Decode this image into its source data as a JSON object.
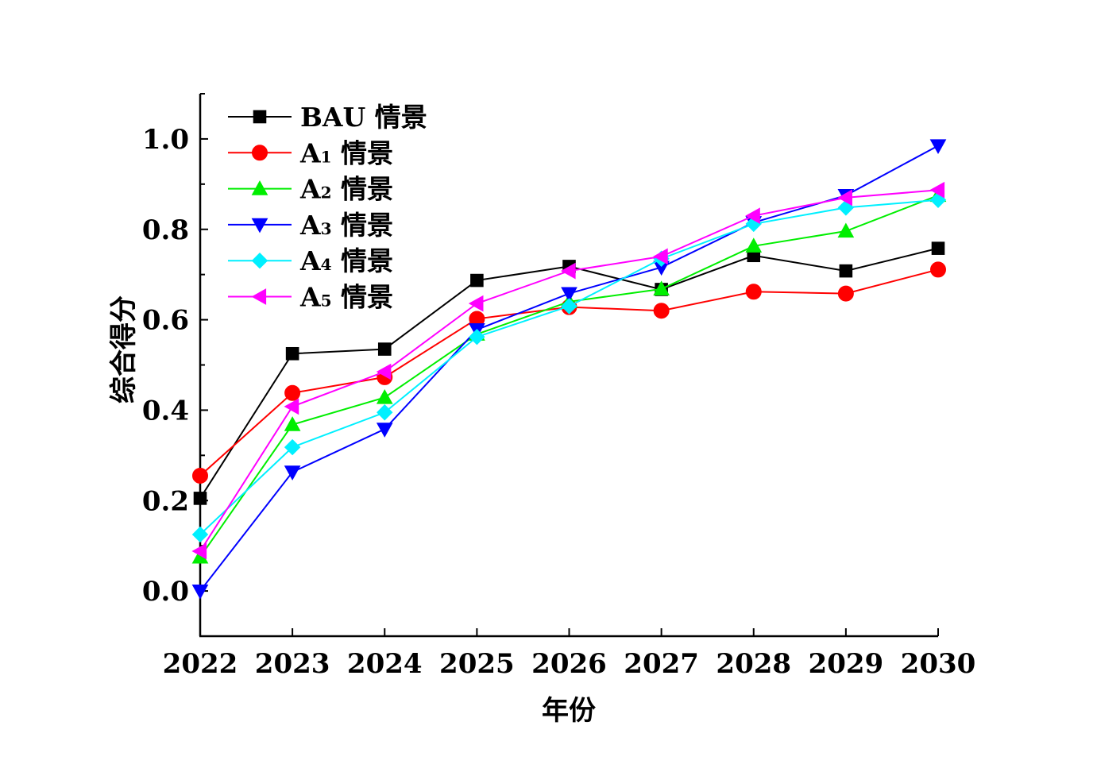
{
  "chart_data": {
    "type": "line",
    "xlabel": "年份",
    "ylabel": "综合得分",
    "categories": [
      "2022",
      "2023",
      "2024",
      "2025",
      "2026",
      "2027",
      "2028",
      "2029",
      "2030"
    ],
    "ylim": [
      -0.1,
      1.1
    ],
    "yticks": [
      "0.0",
      "0.2",
      "0.4",
      "0.6",
      "0.8",
      "1.0"
    ],
    "ytick_values": [
      0.0,
      0.2,
      0.4,
      0.6,
      0.8,
      1.0
    ],
    "grid": false,
    "legend_position": "top-left",
    "series": [
      {
        "name": "BAU 情景",
        "label_main": "BAU",
        "label_sub": "",
        "label_suffix": " 情景",
        "color": "#000000",
        "marker": "square",
        "values": [
          0.205,
          0.525,
          0.535,
          0.687,
          0.718,
          0.667,
          0.742,
          0.708,
          0.758
        ]
      },
      {
        "name": "A₁ 情景",
        "label_main": "A",
        "label_sub": "1",
        "label_suffix": " 情景",
        "color": "#ff0000",
        "marker": "circle",
        "values": [
          0.255,
          0.438,
          0.473,
          0.602,
          0.628,
          0.62,
          0.662,
          0.658,
          0.711
        ]
      },
      {
        "name": "A₂ 情景",
        "label_main": "A",
        "label_sub": "2",
        "label_suffix": " 情景",
        "color": "#00ee00",
        "marker": "triangle-up",
        "values": [
          0.075,
          0.368,
          0.428,
          0.568,
          0.64,
          0.668,
          0.763,
          0.796,
          0.875
        ]
      },
      {
        "name": "A₃ 情景",
        "label_main": "A",
        "label_sub": "3",
        "label_suffix": " 情景",
        "color": "#0000ff",
        "marker": "triangle-down",
        "values": [
          0.0,
          0.263,
          0.358,
          0.578,
          0.658,
          0.716,
          0.815,
          0.875,
          0.985
        ]
      },
      {
        "name": "A₄ 情景",
        "label_main": "A",
        "label_sub": "4",
        "label_suffix": " 情景",
        "color": "#00f0ff",
        "marker": "diamond",
        "values": [
          0.125,
          0.318,
          0.395,
          0.562,
          0.63,
          0.735,
          0.812,
          0.848,
          0.865
        ]
      },
      {
        "name": "A₅ 情景",
        "label_main": "A",
        "label_sub": "5",
        "label_suffix": " 情景",
        "color": "#ff00ff",
        "marker": "triangle-left",
        "values": [
          0.088,
          0.408,
          0.485,
          0.636,
          0.708,
          0.74,
          0.83,
          0.87,
          0.887
        ]
      }
    ]
  }
}
